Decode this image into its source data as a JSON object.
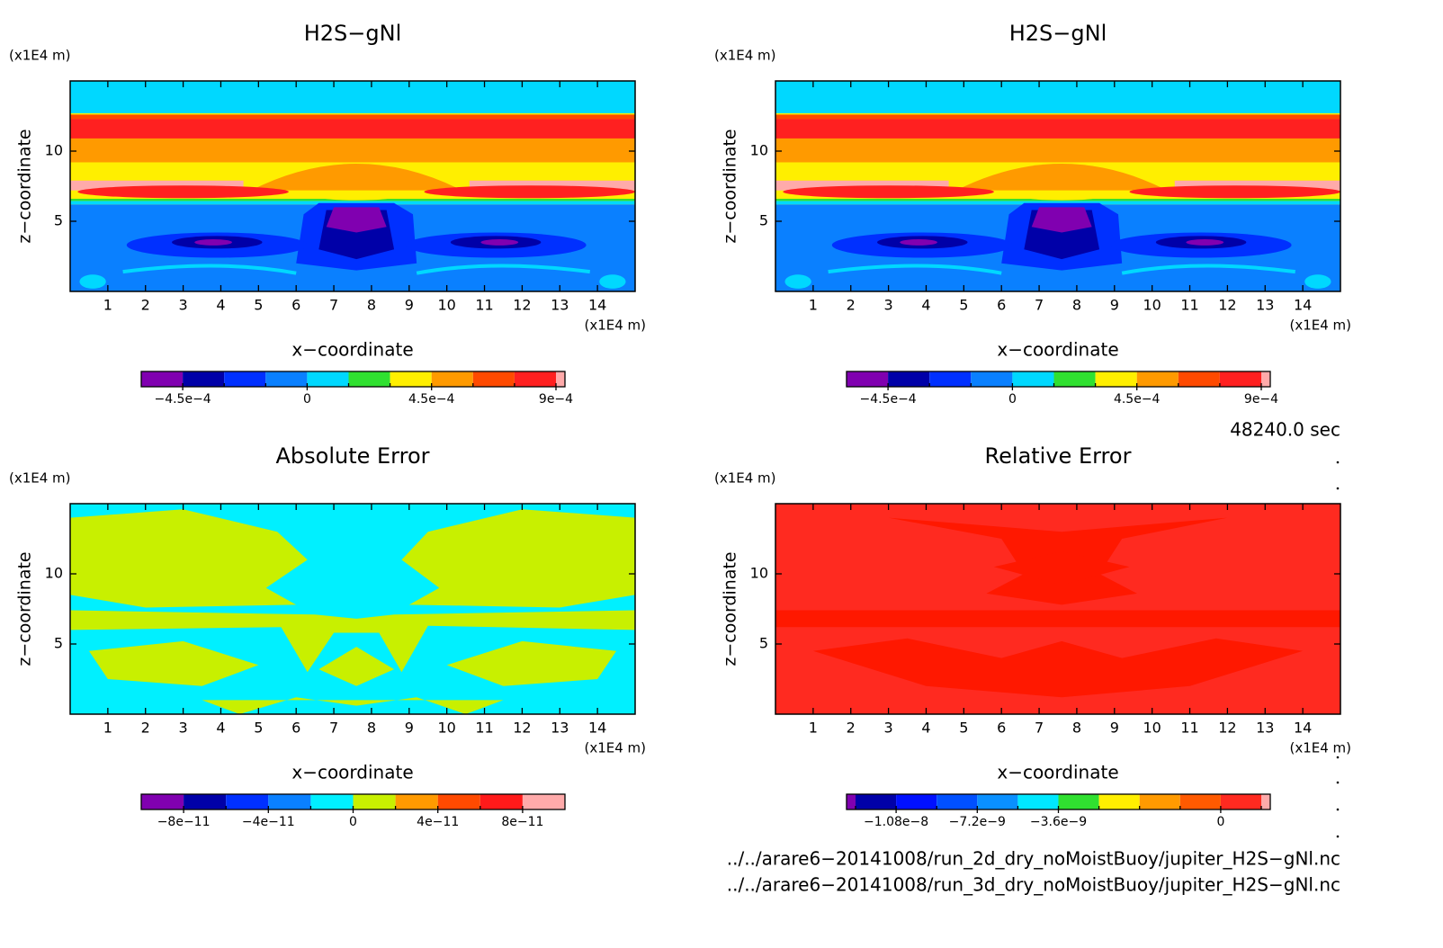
{
  "chart_data": [
    {
      "type": "contour",
      "title": "H2S−gNl",
      "x_label": "x−coordinate",
      "y_label": "z−coordinate",
      "x_unit": "(x1E4 m)",
      "y_unit": "(x1E4 m)",
      "xlim": [
        0,
        15
      ],
      "ylim": [
        0,
        15
      ],
      "xticks": [
        1,
        2,
        3,
        4,
        5,
        6,
        7,
        8,
        9,
        10,
        11,
        12,
        13,
        14
      ],
      "yticks": [
        5,
        10
      ],
      "colorbar": {
        "colors": [
          "#8000b0",
          "#0000a8",
          "#0030ff",
          "#0a80ff",
          "#00d8ff",
          "#30e030",
          "#ffef00",
          "#ff9a00",
          "#ff4a00",
          "#ff2020",
          "#ffaaaa"
        ],
        "extend": "max",
        "levels": [
          -0.00045,
          -0.0003,
          -0.00015,
          0,
          0.00015,
          0.0003,
          0.00045,
          0.0006,
          0.00075,
          0.0009
        ],
        "ticks": [
          {
            "value": -0.00045,
            "label": "−4.5e−4"
          },
          0,
          {
            "value": 0.00045,
            "label": "4.5e−4"
          },
          {
            "value": 0.0009,
            "label": "9e−4"
          }
        ]
      }
    },
    {
      "type": "contour",
      "title": "H2S−gNl",
      "x_label": "x−coordinate",
      "y_label": "z−coordinate",
      "x_unit": "(x1E4 m)",
      "y_unit": "(x1E4 m)",
      "xlim": [
        0,
        15
      ],
      "ylim": [
        0,
        15
      ],
      "xticks": [
        1,
        2,
        3,
        4,
        5,
        6,
        7,
        8,
        9,
        10,
        11,
        12,
        13,
        14
      ],
      "yticks": [
        5,
        10
      ],
      "colorbar": {
        "colors": [
          "#8000b0",
          "#0000a8",
          "#0030ff",
          "#0a80ff",
          "#00d8ff",
          "#30e030",
          "#ffef00",
          "#ff9a00",
          "#ff4a00",
          "#ff2020",
          "#ffaaaa"
        ],
        "extend": "max",
        "levels": [
          -0.00045,
          -0.0003,
          -0.00015,
          0,
          0.00015,
          0.0003,
          0.00045,
          0.0006,
          0.00075,
          0.0009
        ],
        "ticks": [
          {
            "value": -0.00045,
            "label": "−4.5e−4"
          },
          0,
          {
            "value": 0.00045,
            "label": "4.5e−4"
          },
          {
            "value": 0.0009,
            "label": "9e−4"
          }
        ]
      }
    },
    {
      "type": "contour",
      "title": "Absolute Error",
      "x_label": "x−coordinate",
      "y_label": "z−coordinate",
      "x_unit": "(x1E4 m)",
      "y_unit": "(x1E4 m)",
      "xlim": [
        0,
        15
      ],
      "ylim": [
        0,
        15
      ],
      "xticks": [
        1,
        2,
        3,
        4,
        5,
        6,
        7,
        8,
        9,
        10,
        11,
        12,
        13,
        14
      ],
      "yticks": [
        5,
        10
      ],
      "colorbar": {
        "colors": [
          "#8000b0",
          "#0000a8",
          "#0030ff",
          "#0a80ff",
          "#00f0ff",
          "#c8f000",
          "#ff9a00",
          "#ff4a00",
          "#ff1a1a",
          "#ffaaaa"
        ],
        "extend": "none",
        "levels": [
          -8e-11,
          -6e-11,
          -4e-11,
          -2e-11,
          0,
          2e-11,
          4e-11,
          6e-11,
          8e-11
        ],
        "ticks": [
          {
            "value": -8e-11,
            "label": "−8e−11"
          },
          {
            "value": -4e-11,
            "label": "−4e−11"
          },
          0,
          {
            "value": 4e-11,
            "label": "4e−11"
          },
          {
            "value": 8e-11,
            "label": "8e−11"
          }
        ]
      }
    },
    {
      "type": "contour",
      "title": "Relative Error",
      "x_label": "x−coordinate",
      "y_label": "z−coordinate",
      "x_unit": "(x1E4 m)",
      "y_unit": "(x1E4 m)",
      "xlim": [
        0,
        15
      ],
      "ylim": [
        0,
        15
      ],
      "xticks": [
        1,
        2,
        3,
        4,
        5,
        6,
        7,
        8,
        9,
        10,
        11,
        12,
        13,
        14
      ],
      "yticks": [
        5,
        10
      ],
      "colorbar": {
        "colors": [
          "#8000b0",
          "#0000a8",
          "#0010ff",
          "#0050ff",
          "#0a90ff",
          "#00e8ff",
          "#30e030",
          "#ffef00",
          "#ff9a00",
          "#ff5a00",
          "#ff2a20",
          "#ffaaaa"
        ],
        "extend": "both",
        "levels": [
          -1.26e-08,
          -1.08e-08,
          -9e-09,
          -7.2e-09,
          -5.4e-09,
          -3.6e-09,
          -2.4e-09,
          -1.2e-09,
          -6e-10,
          0,
          6e-10
        ],
        "ticks": [
          {
            "value": -1.08e-08,
            "label": "−1.08e−8"
          },
          {
            "value": -7.2e-09,
            "label": "−7.2e−9"
          },
          {
            "value": -3.6e-09,
            "label": "−3.6e−9"
          },
          0
        ]
      }
    }
  ],
  "time_label": "48240.0 sec",
  "files": [
    "../../arare6−20141008/run_2d_dry_noMoistBuoy/jupiter_H2S−gNl.nc",
    "../../arare6−20141008/run_3d_dry_noMoistBuoy/jupiter_H2S−gNl.nc"
  ]
}
